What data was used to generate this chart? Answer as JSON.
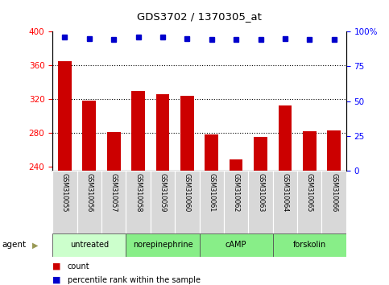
{
  "title": "GDS3702 / 1370305_at",
  "categories": [
    "GSM310055",
    "GSM310056",
    "GSM310057",
    "GSM310058",
    "GSM310059",
    "GSM310060",
    "GSM310061",
    "GSM310062",
    "GSM310063",
    "GSM310064",
    "GSM310065",
    "GSM310066"
  ],
  "bar_values": [
    365,
    318,
    281,
    330,
    326,
    324,
    278,
    249,
    275,
    312,
    282,
    283
  ],
  "percentile_values": [
    96,
    95,
    94,
    96,
    96,
    95,
    94,
    94,
    94,
    95,
    94,
    94
  ],
  "bar_color": "#cc0000",
  "dot_color": "#0000cc",
  "ylim_left": [
    235,
    400
  ],
  "ylim_right": [
    0,
    100
  ],
  "yticks_left": [
    240,
    280,
    320,
    360,
    400
  ],
  "yticks_right": [
    0,
    25,
    50,
    75,
    100
  ],
  "ytick_right_labels": [
    "0",
    "25",
    "50",
    "75",
    "100%"
  ],
  "grid_values": [
    280,
    320,
    360
  ],
  "agent_groups": [
    {
      "label": "untreated",
      "start": 0,
      "end": 3,
      "color": "#ccffcc"
    },
    {
      "label": "norepinephrine",
      "start": 3,
      "end": 6,
      "color": "#88ee88"
    },
    {
      "label": "cAMP",
      "start": 6,
      "end": 9,
      "color": "#88ee88"
    },
    {
      "label": "forskolin",
      "start": 9,
      "end": 12,
      "color": "#88ee88"
    }
  ],
  "agent_label": "agent",
  "legend_count_label": "count",
  "legend_pct_label": "percentile rank within the sample",
  "bar_width": 0.55,
  "background_color": "#ffffff"
}
